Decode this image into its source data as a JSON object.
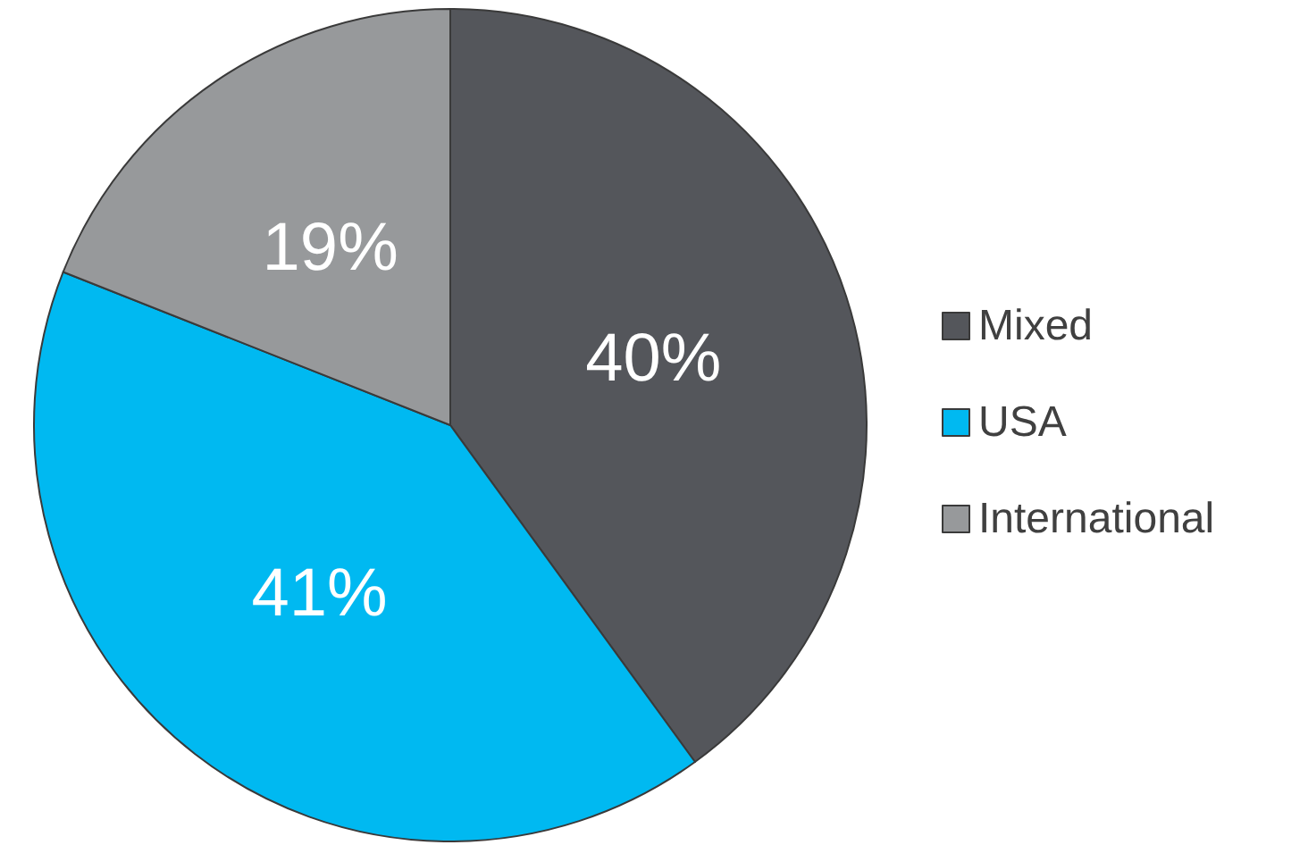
{
  "chart_data": {
    "type": "pie",
    "categories": [
      "Mixed",
      "USA",
      "International"
    ],
    "values": [
      40,
      41,
      19
    ],
    "value_labels": [
      "40%",
      "41%",
      "19%"
    ],
    "colors": [
      "#54565b",
      "#00b9f1",
      "#97999b"
    ],
    "legend": "right"
  }
}
